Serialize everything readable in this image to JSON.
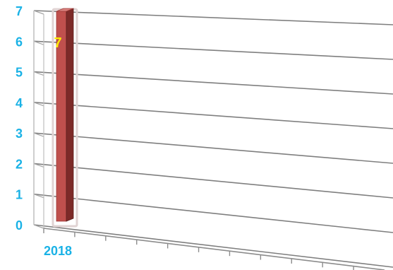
{
  "chart_data": {
    "type": "bar",
    "categories": [
      "2018"
    ],
    "values": [
      7
    ],
    "data_labels": [
      "7"
    ],
    "ylim": [
      0,
      7
    ],
    "yticks": [
      "0",
      "1",
      "2",
      "3",
      "4",
      "5",
      "6",
      "7"
    ],
    "grid": true,
    "legend": "none",
    "perspective": "3d",
    "colors": {
      "bar_front": "#c0504d",
      "bar_side": "#7d2a28",
      "bar_top": "#d9817e",
      "tick_label": "#1ab2e6",
      "data_label": "#ffeb00",
      "gridline": "#7f7f7f"
    }
  }
}
